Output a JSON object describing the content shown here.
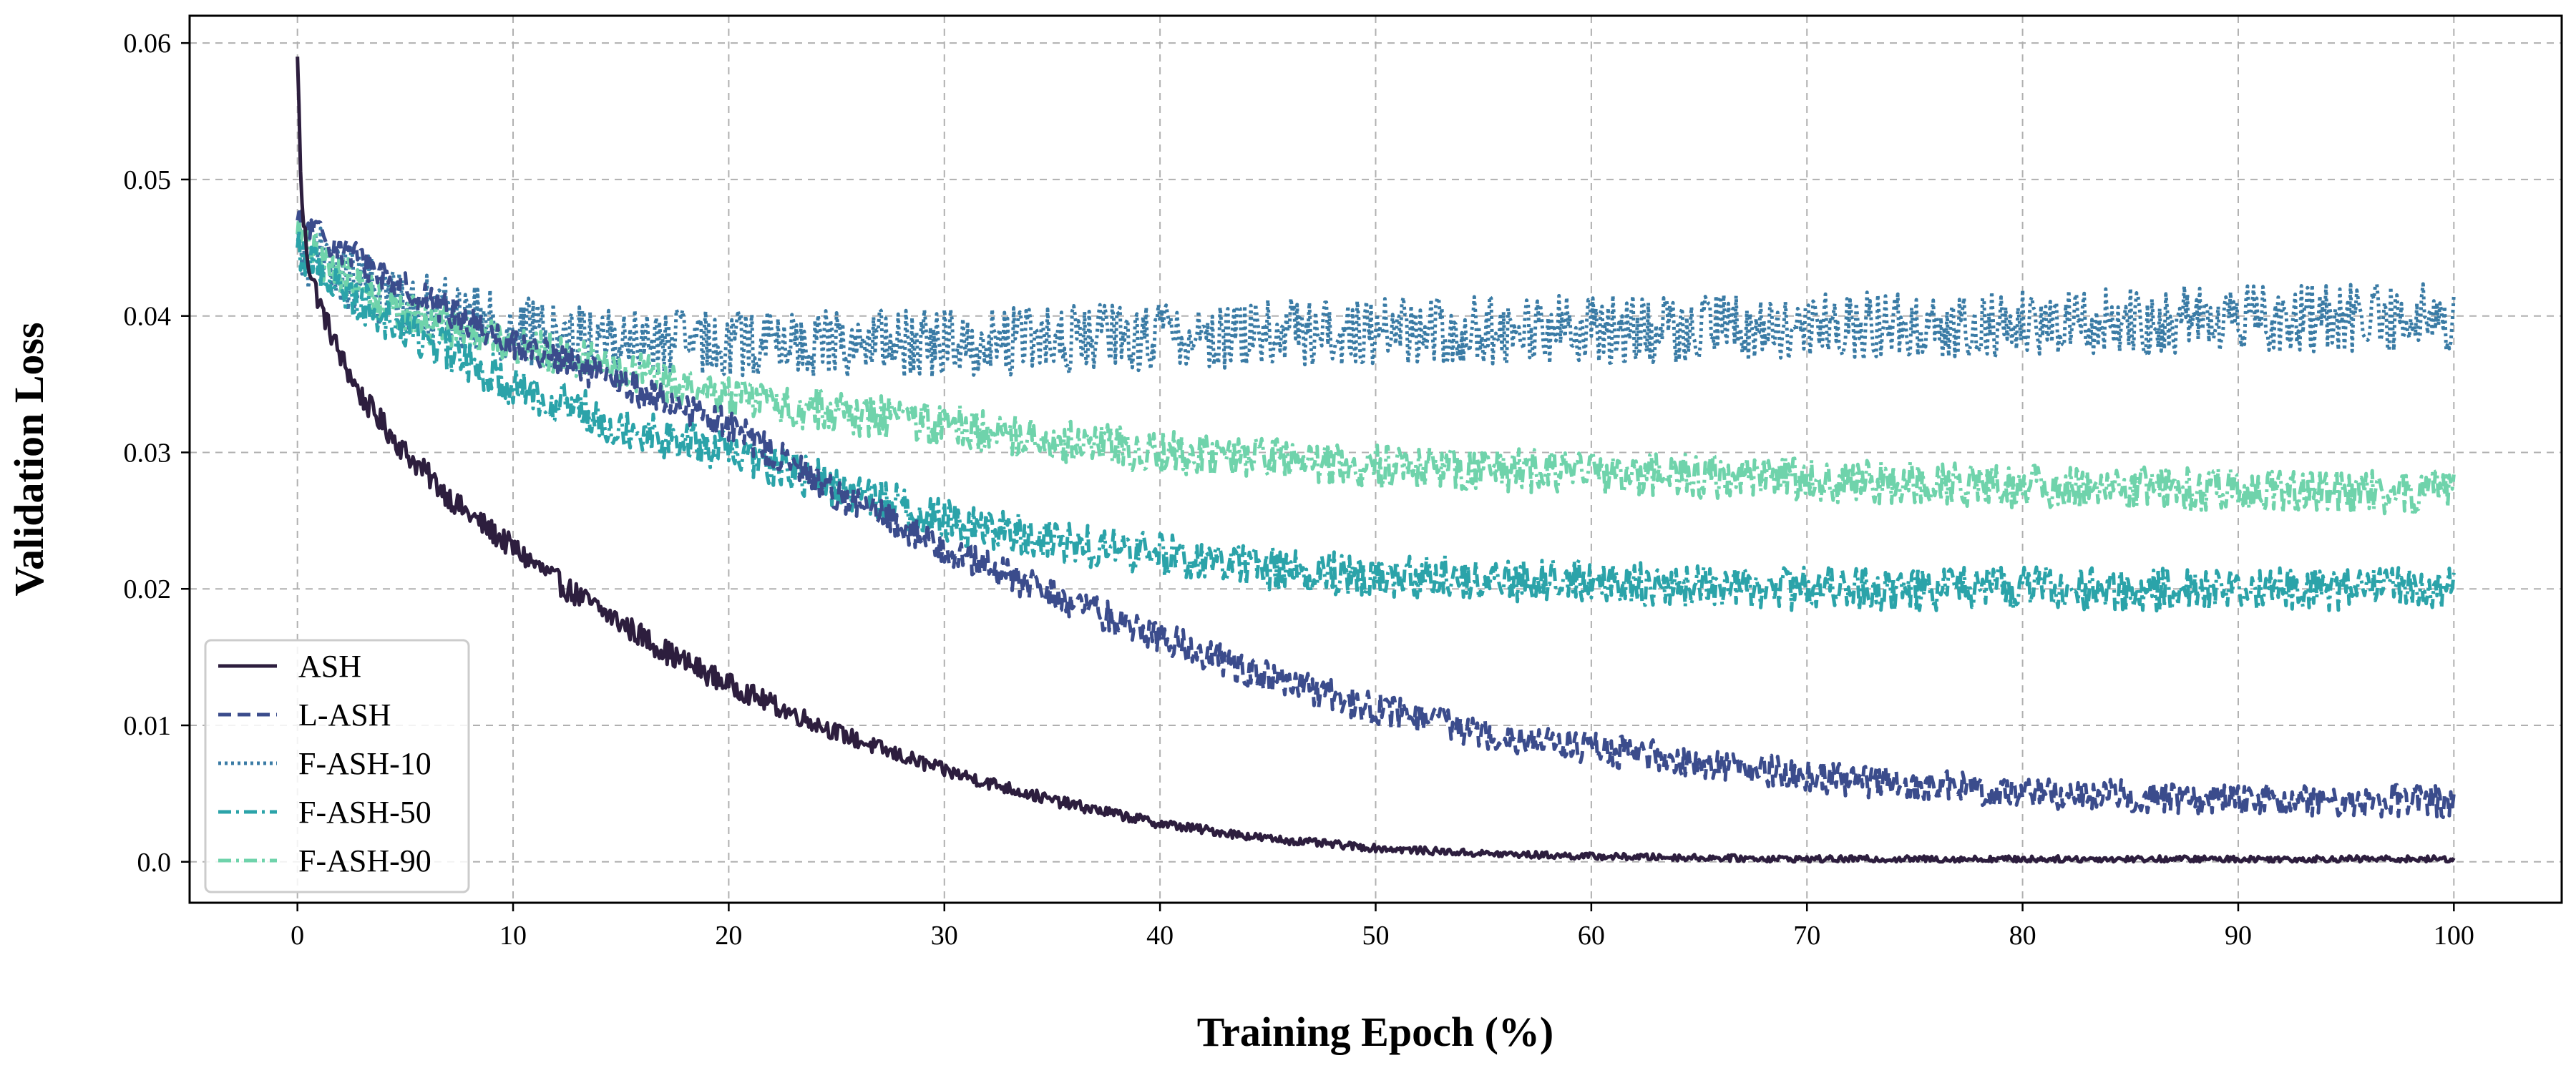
{
  "chart_data": {
    "type": "line",
    "title": "",
    "xlabel": "Training Epoch (%)",
    "ylabel": "Validation Loss",
    "xlim": [
      -5,
      105
    ],
    "ylim": [
      -0.003,
      0.062
    ],
    "xticks": [
      0,
      10,
      20,
      30,
      40,
      50,
      60,
      70,
      80,
      90,
      100
    ],
    "xtick_labels": [
      "0",
      "10",
      "20",
      "30",
      "40",
      "50",
      "60",
      "70",
      "80",
      "90",
      "100"
    ],
    "yticks": [
      0.0,
      0.01,
      0.02,
      0.03,
      0.04,
      0.05,
      0.06
    ],
    "ytick_labels": [
      "0.0",
      "0.01",
      "0.02",
      "0.03",
      "0.04",
      "0.05",
      "0.06"
    ],
    "grid": true,
    "legend_position": "lower-left",
    "series": [
      {
        "name": "ASH",
        "color": "#2d1e3e",
        "dash": "solid",
        "noise_amplitude": 0.0009,
        "x": [
          0,
          0.2,
          0.5,
          1,
          2,
          3,
          5,
          7.5,
          10,
          12.5,
          15,
          17.5,
          20,
          22.5,
          25,
          27.5,
          30,
          35,
          40,
          45,
          50,
          55,
          60,
          70,
          80,
          90,
          100
        ],
        "y": [
          0.059,
          0.048,
          0.044,
          0.041,
          0.037,
          0.034,
          0.03,
          0.026,
          0.023,
          0.02,
          0.0175,
          0.015,
          0.013,
          0.0112,
          0.0095,
          0.008,
          0.0067,
          0.0045,
          0.0028,
          0.0017,
          0.001,
          0.0006,
          0.0004,
          0.0002,
          0.0002,
          0.0002,
          0.0002
        ]
      },
      {
        "name": "L-ASH",
        "color": "#3b4c8c",
        "dash": "dashed",
        "noise_amplitude": 0.0012,
        "x": [
          0,
          1,
          3,
          5,
          10,
          15,
          20,
          25,
          30,
          35,
          40,
          45,
          50,
          55,
          60,
          65,
          70,
          75,
          80,
          85,
          90,
          95,
          100
        ],
        "y": [
          0.047,
          0.046,
          0.044,
          0.042,
          0.038,
          0.035,
          0.032,
          0.027,
          0.023,
          0.0195,
          0.0165,
          0.0135,
          0.0112,
          0.0095,
          0.0083,
          0.0073,
          0.0063,
          0.0056,
          0.0051,
          0.0048,
          0.0046,
          0.0045,
          0.0044
        ]
      },
      {
        "name": "F-ASH-10",
        "color": "#3a7ba5",
        "dash": "dotted",
        "noise_amplitude": 0.0025,
        "x": [
          0,
          2,
          5,
          10,
          15,
          20,
          25,
          30,
          40,
          50,
          60,
          70,
          80,
          90,
          100
        ],
        "y": [
          0.045,
          0.043,
          0.041,
          0.039,
          0.038,
          0.038,
          0.038,
          0.038,
          0.0385,
          0.039,
          0.039,
          0.0392,
          0.0395,
          0.0398,
          0.04
        ]
      },
      {
        "name": "F-ASH-50",
        "color": "#2ba3a9",
        "dash": "dashdot",
        "noise_amplitude": 0.0016,
        "x": [
          0,
          2,
          5,
          10,
          15,
          20,
          25,
          30,
          35,
          40,
          45,
          50,
          60,
          70,
          80,
          90,
          100
        ],
        "y": [
          0.045,
          0.042,
          0.039,
          0.035,
          0.032,
          0.03,
          0.0275,
          0.025,
          0.0235,
          0.0225,
          0.0215,
          0.021,
          0.0205,
          0.02,
          0.02,
          0.02,
          0.02
        ]
      },
      {
        "name": "F-ASH-90",
        "color": "#6fd3ab",
        "dash": "dashdot",
        "noise_amplitude": 0.0016,
        "x": [
          0,
          2,
          5,
          10,
          15,
          20,
          25,
          30,
          35,
          40,
          50,
          60,
          70,
          80,
          90,
          100
        ],
        "y": [
          0.046,
          0.043,
          0.04,
          0.038,
          0.036,
          0.034,
          0.033,
          0.032,
          0.031,
          0.03,
          0.029,
          0.0285,
          0.028,
          0.0275,
          0.0272,
          0.027
        ]
      }
    ]
  }
}
